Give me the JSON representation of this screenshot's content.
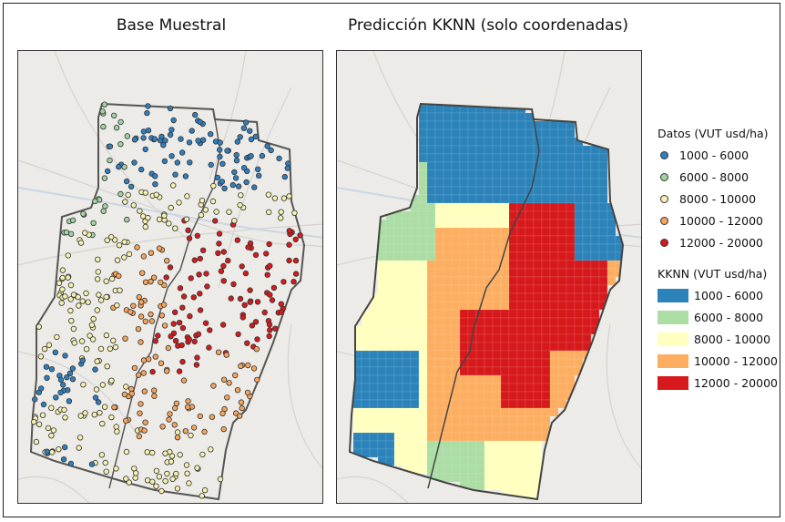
{
  "titles": {
    "left": "Base Muestral",
    "right": "Predicción KKNN (solo coordenadas)"
  },
  "legend_points": {
    "title": "Datos (VUT usd/ha)",
    "items": [
      {
        "label": "1000 - 6000",
        "color": "#2f7fbf"
      },
      {
        "label": "6000 - 8000",
        "color": "#9fd3a0"
      },
      {
        "label": "8000 - 10000",
        "color": "#f5f0b0"
      },
      {
        "label": "10000 - 12000",
        "color": "#f6a45c"
      },
      {
        "label": "12000 - 20000",
        "color": "#d7191c"
      }
    ]
  },
  "legend_raster": {
    "title": "KKNN (VUT usd/ha)",
    "items": [
      {
        "label": "1000 - 6000",
        "color": "#2b83ba"
      },
      {
        "label": "6000 - 8000",
        "color": "#abdda4"
      },
      {
        "label": "8000 - 10000",
        "color": "#ffffbf"
      },
      {
        "label": "10000 - 12000",
        "color": "#fdae61"
      },
      {
        "label": "12000 - 20000",
        "color": "#d7191c"
      }
    ]
  },
  "colors": {
    "basemap": "#ecebe7",
    "boundary": "#555555"
  }
}
